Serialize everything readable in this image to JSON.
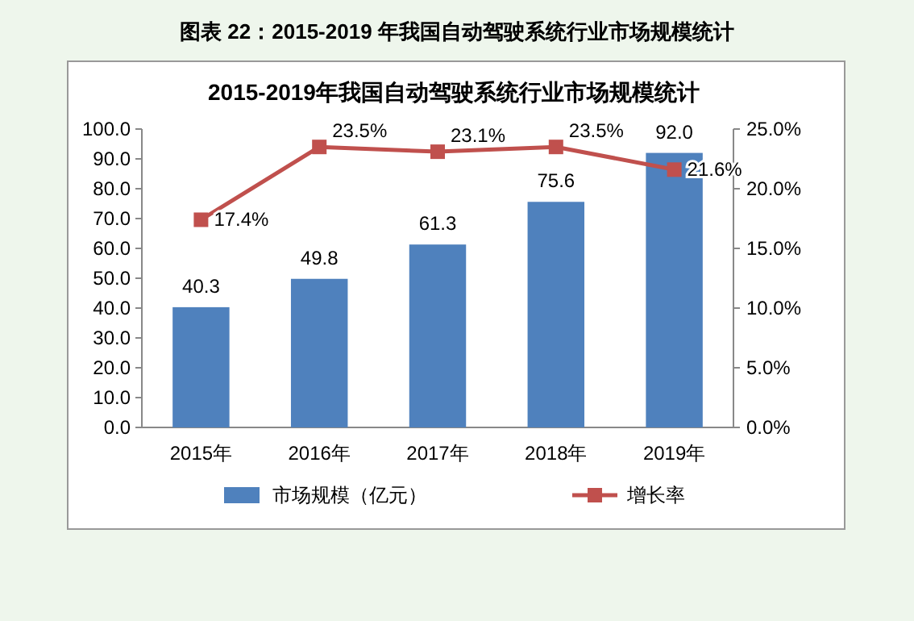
{
  "chart_data": {
    "type": "bar",
    "title": "2015-2019年我国自动驾驶系统行业市场规模统计",
    "annotations": [
      "图表 22：2015-2019 年我国自动驾驶系统行业市场规模统计"
    ],
    "categories": [
      "2015年",
      "2016年",
      "2017年",
      "2018年",
      "2019年"
    ],
    "series": [
      {
        "name": "市场规模（亿元）",
        "color": "#4f81bd",
        "values": [
          40.3,
          49.8,
          61.3,
          75.6,
          92.0
        ],
        "value_labels": [
          "40.3",
          "49.8",
          "61.3",
          "75.6",
          "92.0"
        ]
      },
      {
        "name": "增长率",
        "type": "line",
        "axis": "y2",
        "color": "#c0504d",
        "marker": "square",
        "values": [
          17.4,
          23.5,
          23.1,
          23.5,
          21.6
        ],
        "value_labels": [
          "17.4%",
          "23.5%",
          "23.1%",
          "23.5%",
          "21.6%"
        ]
      }
    ],
    "ylim": [
      0,
      100
    ],
    "yticks": [
      {
        "value": 0,
        "label": "0.0"
      },
      {
        "value": 10,
        "label": "10.0"
      },
      {
        "value": 20,
        "label": "20.0"
      },
      {
        "value": 30,
        "label": "30.0"
      },
      {
        "value": 40,
        "label": "40.0"
      },
      {
        "value": 50,
        "label": "50.0"
      },
      {
        "value": 60,
        "label": "60.0"
      },
      {
        "value": 70,
        "label": "70.0"
      },
      {
        "value": 80,
        "label": "80.0"
      },
      {
        "value": 90,
        "label": "90.0"
      },
      {
        "value": 100,
        "label": "100.0"
      }
    ],
    "y2lim": [
      0,
      25
    ],
    "y2ticks": [
      {
        "value": 0,
        "label": "0.0%"
      },
      {
        "value": 5,
        "label": "5.0%"
      },
      {
        "value": 10,
        "label": "10.0%"
      },
      {
        "value": 15,
        "label": "15.0%"
      },
      {
        "value": 20,
        "label": "20.0%"
      },
      {
        "value": 25,
        "label": "25.0%"
      }
    ],
    "legend": "bottom",
    "grid": false
  }
}
